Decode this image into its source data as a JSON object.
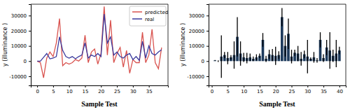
{
  "chart_data": [
    {
      "type": "line",
      "x": [
        0,
        1,
        2,
        3,
        4,
        5,
        6,
        7,
        8,
        9,
        10,
        11,
        12,
        13,
        14,
        15,
        16,
        17,
        18,
        19,
        20,
        21,
        22,
        23,
        24,
        25,
        26,
        27,
        28,
        29,
        30,
        31,
        32,
        33,
        34,
        35,
        36,
        37,
        38,
        39
      ],
      "series": [
        {
          "name": "predicted",
          "color": "#d9534f",
          "values": [
            0,
            -1000,
            -11000,
            2000,
            6000,
            3000,
            12000,
            28000,
            -3000,
            -1000,
            -2000,
            -1000,
            1000,
            0,
            2000,
            17000,
            -1000,
            6000,
            8000,
            -2000,
            5000,
            36000,
            4000,
            27000,
            -1000,
            5000,
            9000,
            -4000,
            7000,
            -8000,
            1000,
            -1000,
            -1000,
            19000,
            -1000,
            4000,
            21000,
            -1000,
            -5000,
            9000
          ]
        },
        {
          "name": "real",
          "color": "#3b3b9e",
          "values": [
            0,
            0,
            2500,
            5000,
            1500,
            2000,
            3000,
            16000,
            7000,
            3000,
            2000,
            3000,
            1500,
            3000,
            4000,
            12000,
            2000,
            4000,
            3000,
            5000,
            3000,
            31000,
            12000,
            16000,
            4000,
            6000,
            3000,
            2000,
            4000,
            5000,
            1000,
            3000,
            500,
            13000,
            2000,
            10000,
            5000,
            4000,
            6000,
            7500
          ]
        }
      ],
      "xlabel": "Sample Test",
      "ylabel": "y (illuminance )",
      "xlim": [
        -2,
        41
      ],
      "xticks": [
        0,
        5,
        10,
        15,
        20,
        25,
        30,
        35
      ],
      "ylim": [
        -16000,
        37500
      ],
      "yticks": [
        -10000,
        0,
        10000,
        20000,
        30000
      ],
      "legend": "upper right",
      "grid": false
    },
    {
      "type": "bar",
      "x": [
        1,
        2,
        3,
        4,
        5,
        6,
        7,
        8,
        9,
        10,
        11,
        12,
        13,
        14,
        15,
        16,
        17,
        18,
        19,
        20,
        21,
        22,
        23,
        24,
        25,
        26,
        27,
        28,
        29,
        30,
        31,
        32,
        33,
        34,
        35,
        36,
        37,
        38,
        39,
        40
      ],
      "values": [
        500,
        0,
        3000,
        4000,
        2000,
        2500,
        4000,
        16000,
        5000,
        2500,
        2000,
        2500,
        1500,
        2500,
        3500,
        14000,
        1500,
        4500,
        4000,
        3500,
        4000,
        29000,
        10000,
        18000,
        3000,
        5500,
        5000,
        1500,
        4500,
        3000,
        1500,
        2500,
        500,
        14000,
        2000,
        9000,
        7000,
        3500,
        5000,
        7000
      ],
      "errors": [
        200,
        500,
        14000,
        2000,
        4000,
        1500,
        9000,
        13000,
        8000,
        3000,
        3500,
        2500,
        1500,
        2000,
        1500,
        4500,
        2000,
        3000,
        4000,
        6000,
        2500,
        6000,
        7000,
        10000,
        4500,
        2000,
        5000,
        4500,
        2500,
        11000,
        1000,
        3500,
        1500,
        5000,
        2500,
        5000,
        12000,
        4000,
        9000,
        2500
      ],
      "color": "#1d3a5c",
      "xlabel": "Sample Test",
      "ylabel": "y (illuminance )",
      "xlim": [
        -1,
        42
      ],
      "xticks": [
        0,
        5,
        10,
        15,
        20,
        25,
        30,
        35,
        40
      ],
      "ylim": [
        -16000,
        37500
      ],
      "yticks": [
        -10000,
        0,
        10000,
        20000,
        30000
      ],
      "grid": false
    }
  ]
}
